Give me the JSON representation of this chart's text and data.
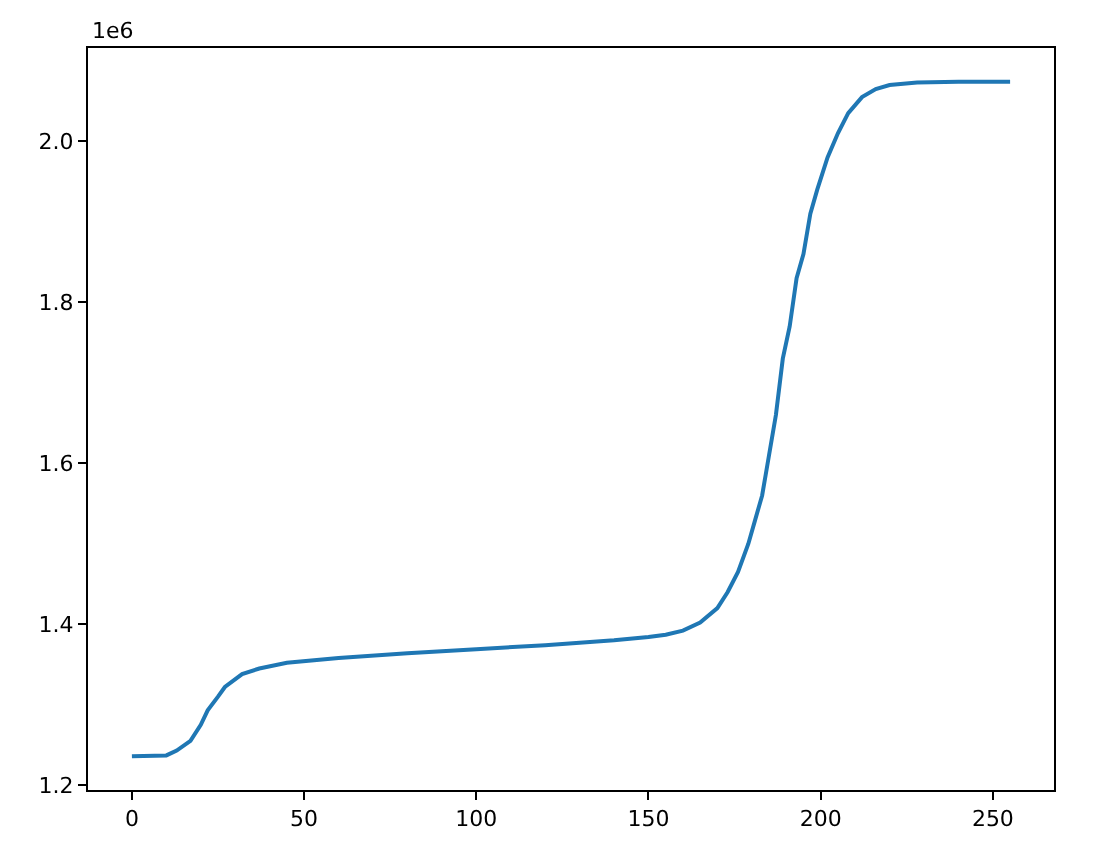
{
  "chart_data": {
    "type": "line",
    "x": [
      0,
      10,
      13,
      17,
      20,
      22,
      25,
      27,
      32,
      37,
      45,
      60,
      80,
      100,
      120,
      140,
      150,
      155,
      160,
      165,
      170,
      173,
      176,
      179,
      181,
      183,
      185,
      187,
      189,
      191,
      193,
      195,
      197,
      199,
      202,
      205,
      208,
      212,
      216,
      220,
      228,
      240,
      255
    ],
    "series": [
      {
        "color": "#1f77b4",
        "values": [
          1.236,
          1.237,
          1.243,
          1.255,
          1.275,
          1.293,
          1.31,
          1.322,
          1.338,
          1.345,
          1.352,
          1.358,
          1.364,
          1.369,
          1.374,
          1.38,
          1.384,
          1.387,
          1.392,
          1.402,
          1.42,
          1.44,
          1.465,
          1.5,
          1.53,
          1.56,
          1.61,
          1.66,
          1.73,
          1.77,
          1.83,
          1.86,
          1.91,
          1.94,
          1.98,
          2.01,
          2.035,
          2.055,
          2.065,
          2.07,
          2.073,
          2.074,
          2.074
        ]
      }
    ],
    "xlim": [
      -12.75,
      267.75
    ],
    "xticks": [
      0,
      50,
      100,
      150,
      200,
      250
    ],
    "ylim": [
      1.194,
      2.116
    ],
    "yticks": [
      {
        "value": 1.2,
        "label": "1.2"
      },
      {
        "value": 1.4,
        "label": "1.4"
      },
      {
        "value": 1.6,
        "label": "1.6"
      },
      {
        "value": 1.8,
        "label": "1.8"
      },
      {
        "value": 2.0,
        "label": "2.0"
      }
    ],
    "annotations": [
      "1e6"
    ],
    "legend": false
  }
}
